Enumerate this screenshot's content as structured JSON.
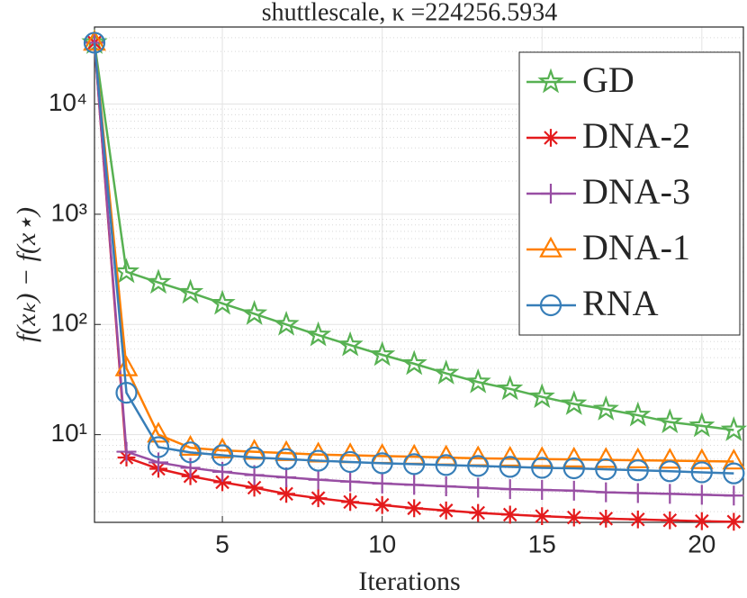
{
  "chart_data": {
    "type": "line",
    "title": "shuttlescale, κ =224256.5934",
    "xlabel": "Iterations",
    "ylabel": "f(xₖ) − f(x⋆)",
    "x": [
      1,
      2,
      3,
      4,
      5,
      6,
      7,
      8,
      9,
      10,
      11,
      12,
      13,
      14,
      15,
      16,
      17,
      18,
      19,
      20,
      21
    ],
    "xlim": [
      1,
      21.3
    ],
    "xticks": [
      5,
      10,
      15,
      20
    ],
    "ylim": [
      1.6,
      50000
    ],
    "yticks": [
      {
        "value": 10,
        "label": "10¹"
      },
      {
        "value": 100,
        "label": "10²"
      },
      {
        "value": 1000,
        "label": "10³"
      },
      {
        "value": 10000,
        "label": "10⁴"
      }
    ],
    "log_y": true,
    "grid": true,
    "legend": "top-right",
    "series": [
      {
        "name": "GD",
        "color": "#57b152",
        "marker": "star",
        "values": [
          36000,
          300,
          240,
          195,
          155,
          125,
          100,
          80,
          65,
          53,
          44,
          36,
          30,
          26,
          22,
          19,
          17,
          15,
          13,
          12,
          11
        ]
      },
      {
        "name": "DNA-2",
        "color": "#e41a1c",
        "marker": "asterisk",
        "values": [
          36000,
          6.2,
          4.9,
          4.2,
          3.7,
          3.3,
          2.9,
          2.65,
          2.45,
          2.3,
          2.15,
          2.05,
          1.95,
          1.88,
          1.82,
          1.77,
          1.73,
          1.7,
          1.67,
          1.64,
          1.62
        ]
      },
      {
        "name": "DNA-3",
        "color": "#984ea3",
        "marker": "plus",
        "values": [
          36000,
          7,
          5.6,
          5,
          4.6,
          4.3,
          4.1,
          3.9,
          3.75,
          3.6,
          3.5,
          3.4,
          3.3,
          3.2,
          3.15,
          3.1,
          3.0,
          2.95,
          2.9,
          2.85,
          2.8
        ]
      },
      {
        "name": "DNA-1",
        "color": "#ff7f00",
        "marker": "triangle",
        "values": [
          36000,
          40,
          10,
          7.6,
          7.2,
          7,
          6.8,
          6.6,
          6.5,
          6.4,
          6.3,
          6.2,
          6.1,
          6.05,
          6,
          5.95,
          5.9,
          5.85,
          5.8,
          5.75,
          5.7
        ]
      },
      {
        "name": "RNA",
        "color": "#377eb8",
        "marker": "circle",
        "values": [
          36000,
          24,
          7.7,
          6.9,
          6.5,
          6.2,
          6,
          5.8,
          5.65,
          5.5,
          5.4,
          5.3,
          5.2,
          5.1,
          5,
          4.95,
          4.85,
          4.75,
          4.65,
          4.55,
          4.45
        ]
      }
    ]
  }
}
